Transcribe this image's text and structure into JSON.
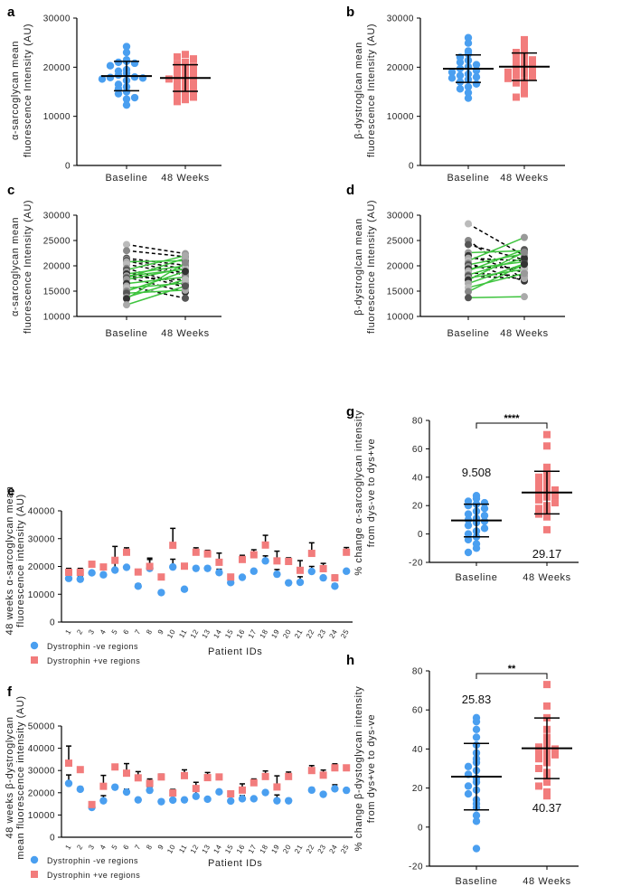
{
  "colors": {
    "blue": "#4a9ff0",
    "red": "#f27c7c",
    "green": "#3ec43e",
    "black": "#000000",
    "grey": "#8a8a8a"
  },
  "chart_data": [
    {
      "panel": "a",
      "type": "scatter",
      "ylabel": [
        "α-sarcoglycan mean",
        "fluorescence Intensity (AU)"
      ],
      "ylim": [
        0,
        30000
      ],
      "yticks": [
        0,
        10000,
        20000,
        30000
      ],
      "categories": [
        "Baseline",
        "48 Weeks"
      ],
      "series": [
        {
          "values": [
            24200,
            23000,
            21500,
            21200,
            21000,
            20800,
            20300,
            19500,
            19200,
            18800,
            18400,
            18000,
            17900,
            17800,
            17600,
            17300,
            16500,
            16000,
            15600,
            15000,
            14600,
            13800,
            13500,
            12300
          ],
          "mean": 18200,
          "sd": 3000,
          "color": "#4a9ff0",
          "marker": "circle"
        },
        {
          "values": [
            22600,
            22100,
            21700,
            21000,
            20600,
            20200,
            19900,
            19500,
            19000,
            18600,
            18100,
            17800,
            17600,
            17200,
            16900,
            16500,
            16000,
            15600,
            15200,
            14800,
            14400,
            13900,
            13400,
            13000
          ],
          "mean": 17800,
          "sd": 2700,
          "color": "#f27c7c",
          "marker": "square"
        }
      ]
    },
    {
      "panel": "b",
      "type": "scatter",
      "ylabel": [
        "β-dystroglcan mean",
        "fluorescence Intensity (AU)"
      ],
      "ylim": [
        0,
        30000
      ],
      "yticks": [
        0,
        10000,
        20000,
        30000
      ],
      "categories": [
        "Baseline",
        "48 Weeks"
      ],
      "series": [
        {
          "values": [
            26000,
            24900,
            23300,
            22700,
            22000,
            21400,
            21000,
            20500,
            20100,
            19700,
            19300,
            19000,
            18600,
            18300,
            18000,
            17800,
            17500,
            17000,
            16600,
            16000,
            15600,
            14800,
            13700
          ],
          "mean": 19700,
          "sd": 2800,
          "color": "#4a9ff0",
          "marker": "circle"
        },
        {
          "values": [
            25600,
            24600,
            23800,
            23000,
            22400,
            21900,
            21500,
            21000,
            20600,
            20300,
            20000,
            19700,
            19400,
            19000,
            18700,
            18300,
            18000,
            17700,
            17200,
            16800,
            16000,
            14600,
            13900
          ],
          "mean": 20100,
          "sd": 2800,
          "color": "#f27c7c",
          "marker": "square"
        }
      ]
    },
    {
      "panel": "c",
      "type": "line",
      "ylabel": [
        "α-sarcoglycan mean",
        "fluorescence Intensity (AU)"
      ],
      "ylim": [
        10000,
        30000
      ],
      "yticks": [
        10000,
        15000,
        20000,
        25000,
        30000
      ],
      "categories": [
        "Baseline",
        "48 Weeks"
      ],
      "pairs": {
        "baseline": [
          24200,
          23000,
          21500,
          21200,
          21000,
          20800,
          20300,
          19500,
          19200,
          18800,
          18400,
          18000,
          17900,
          17800,
          17600,
          17300,
          16500,
          16000,
          15600,
          15000,
          14600,
          13800,
          13500,
          12300
        ],
        "week48": [
          22400,
          21800,
          20100,
          19400,
          18500,
          21000,
          18200,
          16200,
          22000,
          15800,
          20000,
          19300,
          17200,
          14800,
          21500,
          19500,
          17800,
          13600,
          16600,
          18900,
          15200,
          17300,
          20600,
          16000
        ]
      },
      "increase_color": "#3ec43e",
      "decrease_color": "#000000"
    },
    {
      "panel": "d",
      "type": "line",
      "ylabel": [
        "β-dystroglcan mean",
        "fluorescence Intensity (AU)"
      ],
      "ylim": [
        10000,
        30000
      ],
      "yticks": [
        10000,
        15000,
        20000,
        25000,
        30000
      ],
      "categories": [
        "Baseline",
        "48 Weeks"
      ],
      "pairs": {
        "baseline": [
          28300,
          25000,
          24200,
          22600,
          22000,
          21500,
          21000,
          20500,
          20200,
          19800,
          19400,
          19000,
          18600,
          18200,
          18000,
          17600,
          17200,
          16500,
          15700,
          14900,
          13700
        ],
        "week48": [
          22000,
          17200,
          21200,
          23000,
          18600,
          21000,
          25600,
          17000,
          22400,
          19600,
          20800,
          23200,
          18000,
          21500,
          17500,
          19300,
          22700,
          20400,
          18500,
          20300,
          13900
        ]
      },
      "increase_color": "#3ec43e",
      "decrease_color": "#000000"
    },
    {
      "panel": "e",
      "type": "scatter",
      "ylabel": [
        "48 weeks α-sarcoglycan mean",
        "fluorescence intensity (AU)"
      ],
      "xlabel": "Patient IDs",
      "ylim": [
        0,
        40000
      ],
      "yticks": [
        0,
        10000,
        20000,
        30000,
        40000
      ],
      "categories": [
        "1",
        "2",
        "3",
        "4",
        "5",
        "6",
        "7",
        "8",
        "9",
        "10",
        "11",
        "12",
        "13",
        "14",
        "15",
        "16",
        "17",
        "18",
        "19",
        "20",
        "21",
        "22",
        "23",
        "24",
        "25"
      ],
      "series": [
        {
          "name": "Dystrophin -ve regions",
          "color": "#4a9ff0",
          "marker": "circle",
          "values": [
            15700,
            15400,
            17700,
            17000,
            18700,
            19700,
            12900,
            19300,
            10600,
            19800,
            11800,
            19300,
            19300,
            17800,
            14200,
            16100,
            18300,
            22000,
            17200,
            14100,
            14300,
            18200,
            15900,
            12900,
            18300
          ],
          "sd": [
            1200,
            1200,
            0,
            800,
            2800,
            500,
            800,
            3200,
            600,
            2800,
            0,
            400,
            400,
            1200,
            400,
            0,
            500,
            1800,
            1700,
            400,
            2000,
            1800,
            500,
            800,
            300
          ]
        },
        {
          "name": "Dystrophin +ve regions",
          "color": "#f27c7c",
          "marker": "square",
          "values": [
            17900,
            17900,
            20800,
            19800,
            22200,
            25100,
            18000,
            20000,
            16200,
            27600,
            20100,
            25100,
            24500,
            21500,
            16200,
            22500,
            24200,
            27700,
            22000,
            21800,
            18600,
            24700,
            19200,
            15900,
            25100
          ],
          "sd": [
            1400,
            1400,
            0,
            500,
            5000,
            1600,
            200,
            3000,
            700,
            6100,
            0,
            1600,
            1300,
            3300,
            300,
            1500,
            1800,
            3500,
            3500,
            1300,
            3500,
            3800,
            1900,
            1000,
            1700
          ]
        }
      ]
    },
    {
      "panel": "f",
      "type": "scatter",
      "ylabel": [
        "48 weeks β-dystroglycan",
        "mean fluorescence intensity (AU)"
      ],
      "xlabel": "Patient IDs",
      "ylim": [
        0,
        50000
      ],
      "yticks": [
        0,
        10000,
        20000,
        30000,
        40000,
        50000
      ],
      "categories": [
        "1",
        "2",
        "3",
        "4",
        "5",
        "6",
        "7",
        "8",
        "9",
        "10",
        "11",
        "12",
        "13",
        "14",
        "15",
        "16",
        "17",
        "18",
        "19",
        "20",
        "21",
        "22",
        "23",
        "24",
        "25"
      ],
      "series": [
        {
          "name": "Dystrophin -ve regions",
          "color": "#4a9ff0",
          "marker": "circle",
          "values": [
            24200,
            21600,
            13400,
            16400,
            22500,
            20300,
            16800,
            21100,
            16000,
            16700,
            16800,
            18400,
            17100,
            20400,
            16300,
            17300,
            17300,
            20100,
            16400,
            16400,
            null,
            21200,
            19300,
            21800,
            21100
          ],
          "sd": [
            3800,
            1000,
            800,
            2300,
            300,
            1300,
            700,
            1300,
            300,
            800,
            900,
            2600,
            400,
            600,
            700,
            1400,
            600,
            600,
            2600,
            300,
            null,
            1000,
            800,
            1800,
            700
          ]
        },
        {
          "name": "Dystrophin +ve regions",
          "color": "#f27c7c",
          "marker": "square",
          "values": [
            33300,
            30400,
            14700,
            22900,
            31600,
            28800,
            26700,
            24200,
            27100,
            19900,
            27700,
            21900,
            26800,
            27100,
            19500,
            21200,
            24500,
            27300,
            22600,
            27300,
            null,
            30000,
            27900,
            31200,
            31200
          ],
          "sd": [
            7700,
            1200,
            900,
            4900,
            1100,
            4300,
            2800,
            2000,
            1300,
            1600,
            2600,
            2800,
            2300,
            700,
            1200,
            2800,
            1700,
            2500,
            5000,
            2000,
            null,
            2200,
            2300,
            1800,
            600
          ]
        }
      ]
    },
    {
      "panel": "g",
      "type": "scatter",
      "ylabel": [
        "% change α-sarcoglycan intensity",
        "from  dys-ve to dys+ve"
      ],
      "ylim": [
        -20,
        80
      ],
      "yticks": [
        -20,
        0,
        20,
        40,
        60,
        80
      ],
      "categories": [
        "Baseline",
        "48 Weeks"
      ],
      "significance": "****",
      "series": [
        {
          "values": [
            27,
            25,
            23,
            22,
            21,
            20,
            18,
            16,
            14,
            13,
            11,
            10,
            9,
            8,
            6,
            4,
            2,
            0,
            -2,
            -4,
            -7,
            -10,
            -13
          ],
          "mean": 9.508,
          "mean_label": "9.508",
          "sd": 11.5,
          "color": "#4a9ff0",
          "marker": "circle"
        },
        {
          "values": [
            70,
            62,
            47,
            42,
            40,
            38,
            36,
            34,
            33,
            31,
            30,
            28,
            27,
            26,
            24,
            22,
            20,
            18,
            17,
            14,
            12,
            3
          ],
          "mean": 29.17,
          "mean_label": "29.17",
          "sd": 15,
          "color": "#f27c7c",
          "marker": "square"
        }
      ]
    },
    {
      "panel": "h",
      "type": "scatter",
      "ylabel": [
        "% change β-dystoglycan intensity",
        "from dys+ve to dys-ve"
      ],
      "ylim": [
        -20,
        80
      ],
      "yticks": [
        -20,
        0,
        20,
        40,
        60,
        80
      ],
      "categories": [
        "Baseline",
        "48 Weeks"
      ],
      "significance": "**",
      "series": [
        {
          "values": [
            56,
            54,
            50,
            46,
            42,
            38,
            35,
            33,
            31,
            29,
            27,
            25,
            23,
            21,
            19,
            17,
            14,
            12,
            10,
            6,
            3,
            -11
          ],
          "mean": 25.83,
          "mean_label": "25.83",
          "sd": 17,
          "color": "#4a9ff0",
          "marker": "circle"
        },
        {
          "values": [
            73,
            62,
            56,
            50,
            46,
            44,
            42,
            41,
            40,
            39,
            38,
            37,
            36,
            35,
            33,
            30,
            28,
            25,
            23,
            21,
            18,
            16
          ],
          "mean": 40.37,
          "mean_label": "40.37",
          "sd": 15.5,
          "color": "#f27c7c",
          "marker": "square"
        }
      ]
    }
  ]
}
